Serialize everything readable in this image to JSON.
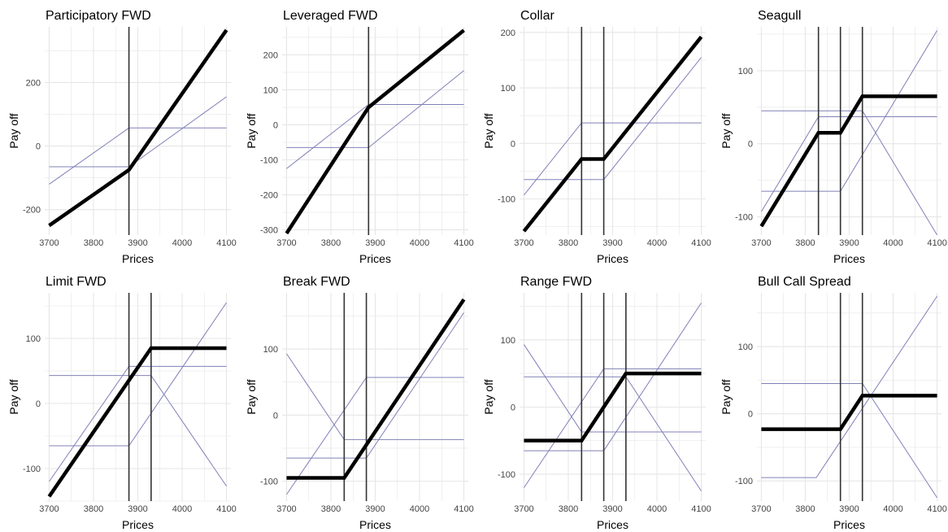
{
  "axis_labels": {
    "x": "Prices",
    "y": "Pay off"
  },
  "colors": {
    "payoff": "#000000",
    "leg": "#8080b8",
    "grid": "#e6e6e6",
    "strike": "#333333"
  },
  "chart_data": [
    {
      "type": "line",
      "title": "Participatory FWD",
      "xlabel": "Prices",
      "ylabel": "Pay off",
      "xlim": [
        3690,
        4110
      ],
      "ylim": [
        -280,
        375
      ],
      "xticks": [
        3700,
        3800,
        3900,
        4000,
        4100
      ],
      "yticks": [
        -200,
        0,
        200
      ],
      "strikes": [
        3880
      ],
      "series": [
        {
          "values": [
            [
              3700,
              -250
            ],
            [
              3880,
              -75
            ],
            [
              4100,
              365
            ]
          ],
          "kind": "payoff"
        },
        {
          "values": [
            [
              3700,
              -120
            ],
            [
              3880,
              57
            ],
            [
              4100,
              57
            ]
          ],
          "kind": "leg"
        },
        {
          "values": [
            [
              3700,
              -65
            ],
            [
              3880,
              -65
            ],
            [
              4100,
              155
            ]
          ],
          "kind": "leg"
        }
      ]
    },
    {
      "type": "line",
      "title": "Leveraged FWD",
      "xlabel": "Prices",
      "ylabel": "Pay off",
      "xlim": [
        3690,
        4110
      ],
      "ylim": [
        -315,
        280
      ],
      "xticks": [
        3700,
        3800,
        3900,
        4000,
        4100
      ],
      "yticks": [
        -300,
        -200,
        -100,
        0,
        100,
        200
      ],
      "strikes": [
        3885
      ],
      "series": [
        {
          "values": [
            [
              3700,
              -310
            ],
            [
              3885,
              50
            ],
            [
              4100,
              270
            ]
          ],
          "kind": "payoff"
        },
        {
          "values": [
            [
              3700,
              -125
            ],
            [
              3885,
              58
            ],
            [
              4100,
              58
            ]
          ],
          "kind": "leg"
        },
        {
          "values": [
            [
              3700,
              -65
            ],
            [
              3885,
              -65
            ],
            [
              4100,
              155
            ]
          ],
          "kind": "leg"
        }
      ]
    },
    {
      "type": "line",
      "title": "Collar",
      "xlabel": "Prices",
      "ylabel": "Pay off",
      "xlim": [
        3690,
        4110
      ],
      "ylim": [
        -165,
        210
      ],
      "xticks": [
        3700,
        3800,
        3900,
        4000,
        4100
      ],
      "yticks": [
        -100,
        0,
        100,
        200
      ],
      "strikes": [
        3830,
        3880
      ],
      "series": [
        {
          "values": [
            [
              3700,
              -158
            ],
            [
              3830,
              -28
            ],
            [
              3880,
              -28
            ],
            [
              4100,
              192
            ]
          ],
          "kind": "payoff"
        },
        {
          "values": [
            [
              3700,
              -93
            ],
            [
              3830,
              37
            ],
            [
              4100,
              37
            ]
          ],
          "kind": "leg"
        },
        {
          "values": [
            [
              3700,
              -65
            ],
            [
              3880,
              -65
            ],
            [
              4100,
              155
            ]
          ],
          "kind": "leg"
        }
      ]
    },
    {
      "type": "line",
      "title": "Seagull",
      "xlabel": "Prices",
      "ylabel": "Pay off",
      "xlim": [
        3690,
        4110
      ],
      "ylim": [
        -125,
        160
      ],
      "xticks": [
        3700,
        3800,
        3900,
        4000,
        4100
      ],
      "yticks": [
        -100,
        0,
        100
      ],
      "strikes": [
        3830,
        3880,
        3930
      ],
      "series": [
        {
          "values": [
            [
              3700,
              -113
            ],
            [
              3830,
              15
            ],
            [
              3880,
              15
            ],
            [
              3930,
              65
            ],
            [
              4100,
              65
            ]
          ],
          "kind": "payoff"
        },
        {
          "values": [
            [
              3700,
              -93
            ],
            [
              3830,
              37
            ],
            [
              4100,
              37
            ]
          ],
          "kind": "leg"
        },
        {
          "values": [
            [
              3700,
              -65
            ],
            [
              3880,
              -65
            ],
            [
              4100,
              155
            ]
          ],
          "kind": "leg"
        },
        {
          "values": [
            [
              3700,
              45
            ],
            [
              3930,
              45
            ],
            [
              4100,
              -125
            ]
          ],
          "kind": "leg"
        }
      ]
    },
    {
      "type": "line",
      "title": "Limit FWD",
      "xlabel": "Prices",
      "ylabel": "Pay off",
      "xlim": [
        3690,
        4110
      ],
      "ylim": [
        -150,
        170
      ],
      "xticks": [
        3700,
        3800,
        3900,
        4000,
        4100
      ],
      "yticks": [
        -100,
        0,
        100
      ],
      "strikes": [
        3880,
        3930
      ],
      "series": [
        {
          "values": [
            [
              3700,
              -143
            ],
            [
              3930,
              85
            ],
            [
              4100,
              85
            ]
          ],
          "kind": "payoff"
        },
        {
          "values": [
            [
              3700,
              -120
            ],
            [
              3880,
              57
            ],
            [
              4100,
              57
            ]
          ],
          "kind": "leg"
        },
        {
          "values": [
            [
              3700,
              -65
            ],
            [
              3880,
              -65
            ],
            [
              4100,
              155
            ]
          ],
          "kind": "leg"
        },
        {
          "values": [
            [
              3700,
              43
            ],
            [
              3930,
              43
            ],
            [
              4100,
              -127
            ]
          ],
          "kind": "leg"
        }
      ]
    },
    {
      "type": "line",
      "title": "Break FWD",
      "xlabel": "Prices",
      "ylabel": "Pay off",
      "xlim": [
        3690,
        4110
      ],
      "ylim": [
        -130,
        185
      ],
      "xticks": [
        3700,
        3800,
        3900,
        4000,
        4100
      ],
      "yticks": [
        -100,
        0,
        100
      ],
      "strikes": [
        3830,
        3880
      ],
      "series": [
        {
          "values": [
            [
              3700,
              -95
            ],
            [
              3830,
              -95
            ],
            [
              4100,
              175
            ]
          ],
          "kind": "payoff"
        },
        {
          "values": [
            [
              3700,
              93
            ],
            [
              3830,
              -37
            ],
            [
              4100,
              -37
            ]
          ],
          "kind": "leg"
        },
        {
          "values": [
            [
              3700,
              -120
            ],
            [
              3880,
              57
            ],
            [
              4100,
              57
            ]
          ],
          "kind": "leg"
        },
        {
          "values": [
            [
              3700,
              -65
            ],
            [
              3880,
              -65
            ],
            [
              4100,
              155
            ]
          ],
          "kind": "leg"
        }
      ]
    },
    {
      "type": "line",
      "title": "Range FWD",
      "xlabel": "Prices",
      "ylabel": "Pay off",
      "xlim": [
        3690,
        4110
      ],
      "ylim": [
        -140,
        170
      ],
      "xticks": [
        3700,
        3800,
        3900,
        4000,
        4100
      ],
      "yticks": [
        -100,
        0,
        100
      ],
      "strikes": [
        3830,
        3880,
        3930
      ],
      "series": [
        {
          "values": [
            [
              3700,
              -50
            ],
            [
              3830,
              -50
            ],
            [
              3930,
              50
            ],
            [
              4100,
              50
            ]
          ],
          "kind": "payoff"
        },
        {
          "values": [
            [
              3700,
              93
            ],
            [
              3830,
              -37
            ],
            [
              4100,
              -37
            ]
          ],
          "kind": "leg"
        },
        {
          "values": [
            [
              3700,
              -120
            ],
            [
              3880,
              57
            ],
            [
              4100,
              57
            ]
          ],
          "kind": "leg"
        },
        {
          "values": [
            [
              3700,
              -65
            ],
            [
              3880,
              -65
            ],
            [
              4100,
              155
            ]
          ],
          "kind": "leg"
        },
        {
          "values": [
            [
              3700,
              45
            ],
            [
              3930,
              45
            ],
            [
              4100,
              -125
            ]
          ],
          "kind": "leg"
        }
      ]
    },
    {
      "type": "line",
      "title": "Bull Call Spread",
      "xlabel": "Prices",
      "ylabel": "Pay off",
      "xlim": [
        3690,
        4110
      ],
      "ylim": [
        -130,
        180
      ],
      "xticks": [
        3700,
        3800,
        3900,
        4000,
        4100
      ],
      "yticks": [
        -100,
        0,
        100
      ],
      "strikes": [
        3880,
        3930
      ],
      "series": [
        {
          "values": [
            [
              3700,
              -23
            ],
            [
              3880,
              -23
            ],
            [
              3930,
              27
            ],
            [
              4100,
              27
            ]
          ],
          "kind": "payoff"
        },
        {
          "values": [
            [
              3700,
              -95
            ],
            [
              3825,
              -95
            ],
            [
              4100,
              175
            ]
          ],
          "kind": "leg"
        },
        {
          "values": [
            [
              3700,
              45
            ],
            [
              3930,
              45
            ],
            [
              4100,
              -125
            ]
          ],
          "kind": "leg"
        }
      ]
    }
  ]
}
